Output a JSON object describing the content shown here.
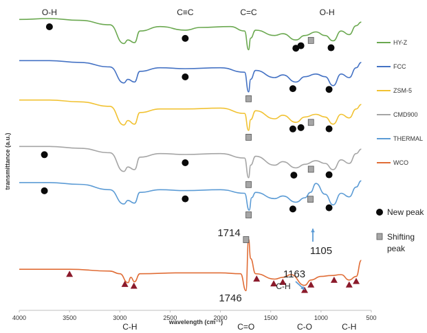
{
  "chart_data": {
    "type": "line",
    "xlabel": "wavelength (cm⁻¹)",
    "ylabel": "transmittance (a.u.)",
    "xlim": [
      4000,
      500
    ],
    "x_ticks": [
      4000,
      3500,
      3000,
      2500,
      2000,
      1500,
      1000,
      500
    ],
    "y_unit": "a.u.",
    "grid": false,
    "legend_position": "right",
    "series": [
      {
        "name": "HY-Z",
        "color": "#6aa84f",
        "offset": 5,
        "points": [
          [
            4000,
            0.45
          ],
          [
            3700,
            0.5
          ],
          [
            3400,
            0.4
          ],
          [
            3100,
            0.15
          ],
          [
            2960,
            -0.9
          ],
          [
            2920,
            -0.7
          ],
          [
            2855,
            -0.85
          ],
          [
            2800,
            -0.2
          ],
          [
            2600,
            0.05
          ],
          [
            2350,
            -0.15
          ],
          [
            2200,
            0.0
          ],
          [
            1900,
            0.05
          ],
          [
            1760,
            -0.2
          ],
          [
            1720,
            -1.25
          ],
          [
            1700,
            -0.6
          ],
          [
            1650,
            -0.15
          ],
          [
            1460,
            -0.45
          ],
          [
            1380,
            -0.35
          ],
          [
            1250,
            -0.7
          ],
          [
            1160,
            -0.45
          ],
          [
            1050,
            -0.25
          ],
          [
            960,
            -0.45
          ],
          [
            880,
            -0.75
          ],
          [
            800,
            -0.2
          ],
          [
            720,
            -0.4
          ],
          [
            650,
            0.1
          ],
          [
            600,
            0.3
          ]
        ]
      },
      {
        "name": "FCC",
        "color": "#4472c4",
        "offset": 4,
        "points": [
          [
            4000,
            0.45
          ],
          [
            3700,
            0.45
          ],
          [
            3400,
            0.35
          ],
          [
            3100,
            0.1
          ],
          [
            2960,
            -0.8
          ],
          [
            2920,
            -0.6
          ],
          [
            2855,
            -0.75
          ],
          [
            2800,
            -0.15
          ],
          [
            2600,
            0.05
          ],
          [
            2350,
            0.0
          ],
          [
            2000,
            0.05
          ],
          [
            1760,
            -0.2
          ],
          [
            1720,
            -1.3
          ],
          [
            1700,
            -0.6
          ],
          [
            1650,
            -0.1
          ],
          [
            1460,
            -0.5
          ],
          [
            1380,
            -0.35
          ],
          [
            1250,
            -0.75
          ],
          [
            1160,
            -0.45
          ],
          [
            1050,
            -0.3
          ],
          [
            960,
            -0.45
          ],
          [
            880,
            -0.95
          ],
          [
            800,
            -0.3
          ],
          [
            720,
            -0.5
          ],
          [
            650,
            0.05
          ],
          [
            600,
            0.35
          ]
        ]
      },
      {
        "name": "ZSM-5",
        "color": "#f1c232",
        "offset": 3,
        "points": [
          [
            4000,
            0.55
          ],
          [
            3700,
            0.55
          ],
          [
            3400,
            0.45
          ],
          [
            3100,
            0.2
          ],
          [
            2960,
            -0.85
          ],
          [
            2920,
            -0.6
          ],
          [
            2855,
            -0.8
          ],
          [
            2800,
            -0.15
          ],
          [
            2600,
            0.05
          ],
          [
            2350,
            0.05
          ],
          [
            2000,
            0.1
          ],
          [
            1760,
            -0.2
          ],
          [
            1720,
            -1.15
          ],
          [
            1700,
            -0.55
          ],
          [
            1650,
            -0.05
          ],
          [
            1460,
            -0.5
          ],
          [
            1380,
            -0.3
          ],
          [
            1250,
            -0.7
          ],
          [
            1160,
            -0.4
          ],
          [
            1050,
            -0.25
          ],
          [
            960,
            -0.4
          ],
          [
            880,
            -0.8
          ],
          [
            800,
            -0.25
          ],
          [
            720,
            -0.45
          ],
          [
            650,
            0.05
          ],
          [
            600,
            0.3
          ]
        ]
      },
      {
        "name": "CMD900",
        "color": "#a5a5a5",
        "offset": 2,
        "points": [
          [
            4000,
            0.45
          ],
          [
            3700,
            0.45
          ],
          [
            3400,
            0.35
          ],
          [
            3100,
            0.1
          ],
          [
            2960,
            -0.95
          ],
          [
            2920,
            -0.7
          ],
          [
            2855,
            -0.85
          ],
          [
            2800,
            -0.15
          ],
          [
            2600,
            0.05
          ],
          [
            2350,
            0.0
          ],
          [
            2000,
            0.05
          ],
          [
            1760,
            -0.2
          ],
          [
            1720,
            -1.3
          ],
          [
            1700,
            -0.6
          ],
          [
            1650,
            -0.1
          ],
          [
            1460,
            -0.6
          ],
          [
            1380,
            -0.4
          ],
          [
            1250,
            -0.75
          ],
          [
            1160,
            -0.55
          ],
          [
            1050,
            -0.35
          ],
          [
            960,
            -0.5
          ],
          [
            880,
            -0.85
          ],
          [
            800,
            -0.3
          ],
          [
            720,
            -0.5
          ],
          [
            650,
            0.05
          ],
          [
            600,
            0.3
          ]
        ]
      },
      {
        "name": "THERMAL",
        "color": "#5b9bd5",
        "offset": 1,
        "points": [
          [
            4000,
            0.35
          ],
          [
            3700,
            0.35
          ],
          [
            3400,
            0.25
          ],
          [
            3100,
            -0.05
          ],
          [
            2960,
            -0.85
          ],
          [
            2920,
            -0.65
          ],
          [
            2855,
            -0.8
          ],
          [
            2800,
            -0.2
          ],
          [
            2600,
            -0.05
          ],
          [
            2350,
            -0.1
          ],
          [
            2000,
            -0.05
          ],
          [
            1760,
            -0.25
          ],
          [
            1714,
            -1.2
          ],
          [
            1690,
            -0.5
          ],
          [
            1650,
            -0.2
          ],
          [
            1460,
            -0.55
          ],
          [
            1380,
            -0.4
          ],
          [
            1250,
            -0.75
          ],
          [
            1160,
            -0.5
          ],
          [
            1105,
            -0.2
          ],
          [
            1050,
            0.3
          ],
          [
            960,
            -0.3
          ],
          [
            880,
            -0.9
          ],
          [
            800,
            -0.25
          ],
          [
            720,
            -0.45
          ],
          [
            650,
            0.1
          ],
          [
            600,
            0.45
          ]
        ]
      },
      {
        "name": "WCO",
        "color": "#e06c35",
        "offset": 0,
        "points": [
          [
            4000,
            0.3
          ],
          [
            3500,
            0.3
          ],
          [
            3100,
            0.2
          ],
          [
            3000,
            0.05
          ],
          [
            2920,
            -0.45
          ],
          [
            2890,
            -0.15
          ],
          [
            2855,
            -0.4
          ],
          [
            2800,
            0.05
          ],
          [
            2400,
            0.1
          ],
          [
            2000,
            0.1
          ],
          [
            1800,
            0.05
          ],
          [
            1746,
            -0.9
          ],
          [
            1720,
            2.0
          ],
          [
            1700,
            0.9
          ],
          [
            1650,
            0.05
          ],
          [
            1460,
            -0.25
          ],
          [
            1380,
            -0.15
          ],
          [
            1300,
            0.0
          ],
          [
            1163,
            -0.6
          ],
          [
            1100,
            -0.3
          ],
          [
            1000,
            -0.1
          ],
          [
            900,
            -0.05
          ],
          [
            800,
            0.0
          ],
          [
            720,
            -0.3
          ],
          [
            650,
            -0.1
          ],
          [
            600,
            0.8
          ]
        ]
      }
    ],
    "new_peaks": [
      {
        "series": "HY-Z",
        "x": [
          3700,
          2350,
          1250,
          1200,
          900
        ]
      },
      {
        "series": "FCC",
        "x": [
          2350,
          1280,
          920
        ]
      },
      {
        "series": "ZSM-5",
        "x": [
          1280,
          1200,
          920
        ]
      },
      {
        "series": "CMD900",
        "x": [
          3750,
          2350,
          1270,
          920
        ]
      },
      {
        "series": "THERMAL",
        "x": [
          3750,
          2350,
          1280,
          920
        ]
      }
    ],
    "shifting_peaks": [
      {
        "series": "HY-Z",
        "x": [
          1100
        ]
      },
      {
        "series": "FCC",
        "x": [
          1720
        ]
      },
      {
        "series": "ZSM-5",
        "x": [
          1720,
          1100
        ]
      },
      {
        "series": "CMD900",
        "x": [
          1720,
          1100
        ]
      },
      {
        "series": "THERMAL",
        "x": [
          1720,
          1105
        ]
      },
      {
        "series": "THERMAL",
        "x": [
          1745
        ]
      }
    ],
    "wco_markers": [
      3500,
      2950,
      2860,
      1640,
      1470,
      1380,
      1163,
      1100,
      870,
      720,
      650
    ],
    "top_annotations": [
      {
        "label": "O-H",
        "x": 3700
      },
      {
        "label": "C≡C",
        "x": 2350
      },
      {
        "label": "C=C",
        "x": 1720
      },
      {
        "label": "O-H",
        "x": 940
      }
    ],
    "bottom_annotations": [
      {
        "label": "C-H",
        "x": 2900
      },
      {
        "label": "C=O",
        "x": 1746
      },
      {
        "label": "C-O",
        "x": 1163
      },
      {
        "label": "C-H",
        "x": 720
      }
    ],
    "value_annotations": [
      {
        "label": "1714",
        "x": 1714
      },
      {
        "label": "1105",
        "x": 1105
      },
      {
        "label": "1163",
        "x": 1163
      },
      {
        "label": "1746",
        "x": 1746
      },
      {
        "label": "C-H",
        "x": 1400
      }
    ],
    "marker_legend": {
      "new_peak": "New peak",
      "shifting_peak": "Shifting peak"
    },
    "colors": {
      "new_peak_marker": "#0a0a0a",
      "shifting_marker_fill": "#a6a6a6",
      "wco_marker": "#8b1a2b",
      "arrow": "#5b9bd5"
    }
  }
}
